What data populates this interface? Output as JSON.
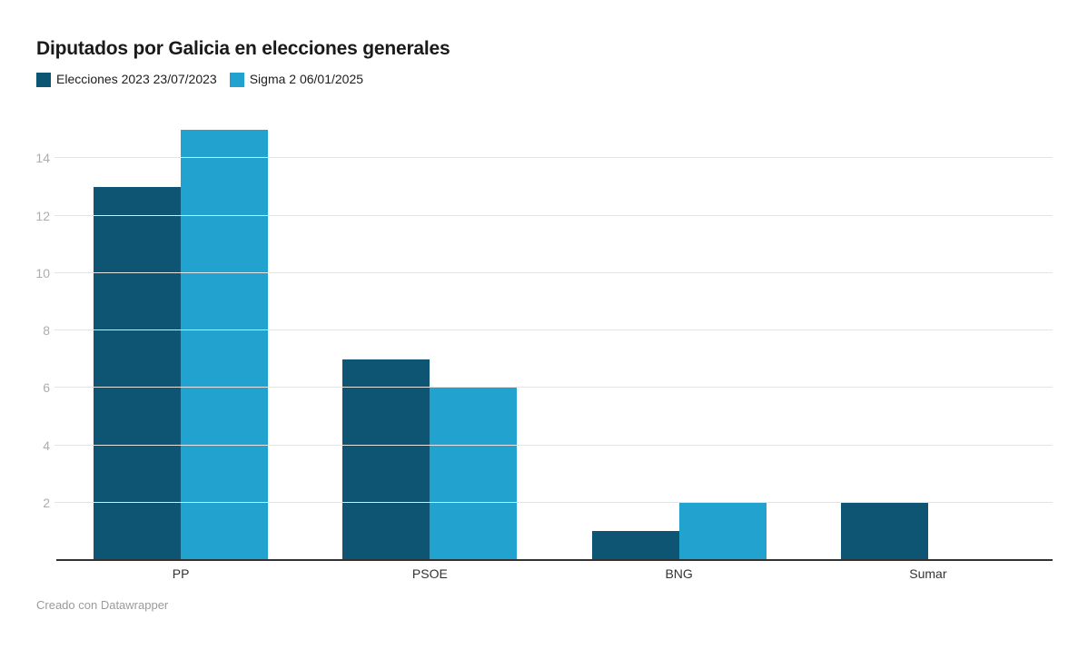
{
  "header": {
    "title": "Diputados por Galicia en elecciones generales"
  },
  "footer": {
    "credit": "Creado con Datawrapper"
  },
  "chart_data": {
    "type": "bar",
    "title": "Diputados por Galicia en elecciones generales",
    "categories": [
      "PP",
      "PSOE",
      "BNG",
      "Sumar"
    ],
    "series": [
      {
        "name": "Elecciones 2023 23/07/2023",
        "color": "#0e5574",
        "values": [
          13,
          7,
          1,
          2
        ]
      },
      {
        "name": "Sigma 2 06/01/2025",
        "color": "#22a3cf",
        "values": [
          15,
          6,
          2,
          0
        ]
      }
    ],
    "xlabel": "",
    "ylabel": "",
    "yticks": [
      2,
      4,
      6,
      8,
      10,
      12,
      14
    ],
    "ylim": [
      0,
      15.4
    ],
    "grid": true,
    "legend_position": "top-left",
    "colors": {
      "title": "#1a1a1a",
      "grid_line": "#e4e4e4",
      "axis_line": "#333333",
      "tick_label": "#adadad",
      "category_label": "#333333",
      "credit": "#9b9b9b"
    }
  }
}
